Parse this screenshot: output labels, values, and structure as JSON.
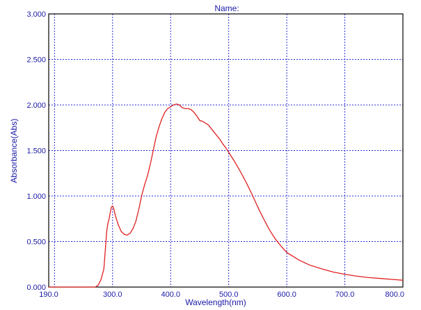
{
  "chart_data": {
    "type": "line",
    "title": "Name:",
    "xlabel": "Wavelength(nm)",
    "ylabel": "Absorbance(Abs)",
    "xlim": [
      190.0,
      800.0
    ],
    "ylim": [
      0.0,
      3.0
    ],
    "x_ticks": [
      "190.0",
      "300.0",
      "400.0",
      "500.0",
      "600.0",
      "700.0",
      "800.0"
    ],
    "y_ticks": [
      "0.000",
      "0.500",
      "1.000",
      "1.500",
      "2.000",
      "2.500",
      "3.000"
    ],
    "x_tick_values": [
      190,
      300,
      400,
      500,
      600,
      700,
      800
    ],
    "y_tick_values": [
      0,
      0.5,
      1.0,
      1.5,
      2.0,
      2.5,
      3.0
    ],
    "x_grid_values": [
      200,
      300,
      400,
      500,
      600,
      700
    ],
    "y_grid_values": [
      0.5,
      1.0,
      1.5,
      2.0,
      2.5
    ],
    "grid": true,
    "series": [
      {
        "color": "#e02020",
        "x": [
          190,
          250,
          270,
          275,
          280,
          285,
          288,
          290,
          292,
          294,
          296,
          298,
          300,
          302,
          305,
          310,
          315,
          320,
          325,
          330,
          335,
          340,
          345,
          350,
          355,
          360,
          365,
          370,
          375,
          380,
          385,
          390,
          395,
          400,
          405,
          410,
          415,
          420,
          425,
          430,
          435,
          440,
          445,
          450,
          455,
          460,
          465,
          470,
          475,
          480,
          485,
          490,
          495,
          500,
          510,
          520,
          530,
          540,
          550,
          560,
          570,
          580,
          590,
          600,
          620,
          640,
          660,
          680,
          700,
          720,
          740,
          760,
          780,
          800
        ],
        "y": [
          0.0,
          0.0,
          0.0,
          0.02,
          0.08,
          0.2,
          0.45,
          0.62,
          0.7,
          0.75,
          0.82,
          0.88,
          0.89,
          0.86,
          0.78,
          0.68,
          0.61,
          0.58,
          0.57,
          0.59,
          0.64,
          0.72,
          0.85,
          1.0,
          1.12,
          1.22,
          1.35,
          1.5,
          1.65,
          1.76,
          1.85,
          1.92,
          1.96,
          1.98,
          2.0,
          2.01,
          2.0,
          1.97,
          1.96,
          1.96,
          1.95,
          1.92,
          1.88,
          1.83,
          1.82,
          1.8,
          1.78,
          1.74,
          1.7,
          1.66,
          1.62,
          1.57,
          1.53,
          1.48,
          1.38,
          1.27,
          1.15,
          1.02,
          0.88,
          0.75,
          0.63,
          0.53,
          0.45,
          0.38,
          0.3,
          0.24,
          0.2,
          0.165,
          0.14,
          0.12,
          0.105,
          0.095,
          0.085,
          0.075
        ]
      }
    ]
  }
}
